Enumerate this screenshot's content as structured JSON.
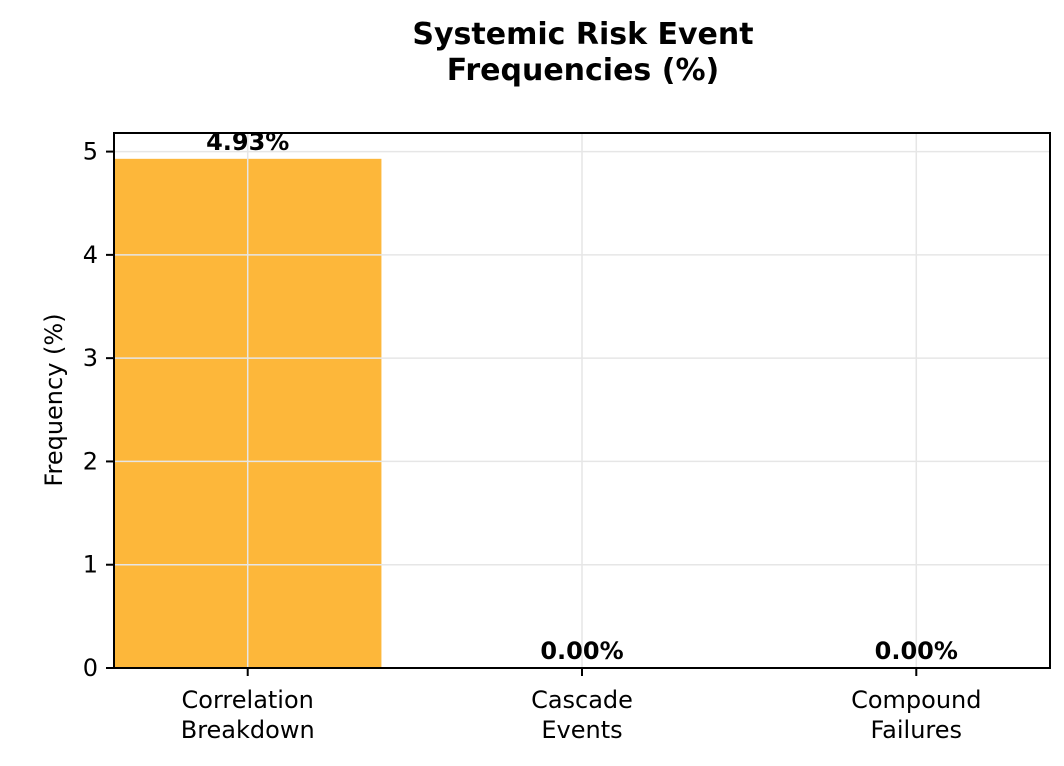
{
  "chart_data": {
    "type": "bar",
    "title_lines": [
      "Systemic Risk Event",
      "Frequencies (%)"
    ],
    "ylabel": "Frequency (%)",
    "xlabel": "",
    "categories": [
      [
        "Correlation",
        "Breakdown"
      ],
      [
        "Cascade",
        "Events"
      ],
      [
        "Compound",
        "Failures"
      ]
    ],
    "values": [
      4.93,
      0.0,
      0.0
    ],
    "data_labels": [
      "4.93%",
      "0.00%",
      "0.00%"
    ],
    "ylim": [
      0,
      5.18
    ],
    "yticks": [
      0,
      1,
      2,
      3,
      4,
      5
    ],
    "ytick_labels": [
      "0",
      "1",
      "2",
      "3",
      "4",
      "5"
    ],
    "grid": true,
    "bar_color": "#fdb73a",
    "grid_color": "#e6e6e6"
  }
}
